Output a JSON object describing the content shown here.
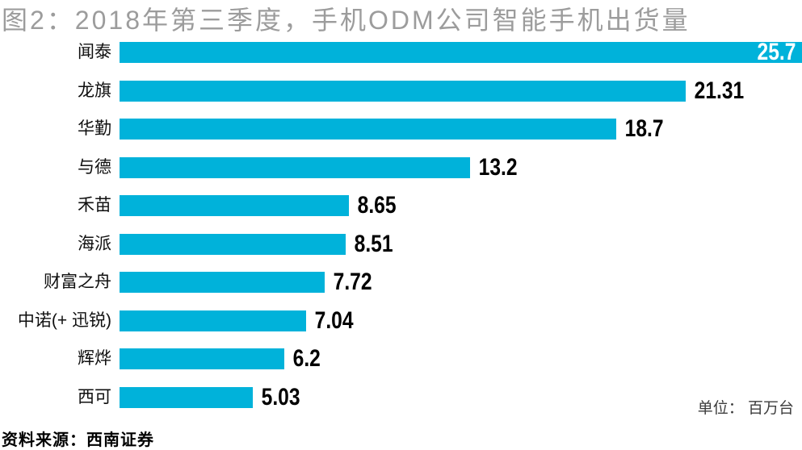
{
  "title": "图2：2018年第三季度，手机ODM公司智能手机出货量",
  "source_note": "资料来源：西南证券",
  "unit_note": "单位： 百万台",
  "colors": {
    "bar": "#00B2DA",
    "title_text": "#9C9C9C",
    "value_outside": "#000000",
    "value_inside": "#FFFFFF",
    "unit_text": "#3D3D3D",
    "source_text": "#000000"
  },
  "chart_data": {
    "type": "bar",
    "orientation": "horizontal",
    "title": "图2：2018年第三季度，手机ODM公司智能手机出货量",
    "xlabel": "",
    "ylabel": "",
    "unit": "百万台",
    "grid": false,
    "legend": null,
    "xlim": [
      0,
      25.7
    ],
    "categories": [
      "闻泰",
      "龙旗",
      "华勤",
      "与德",
      "禾苗",
      "海派",
      "财富之舟",
      "中诺(+ 迅锐)",
      "辉烨",
      "西可"
    ],
    "values": [
      25.7,
      21.31,
      18.7,
      13.2,
      8.65,
      8.51,
      7.72,
      7.04,
      6.2,
      5.03
    ],
    "value_labels": [
      "25.7",
      "21.31",
      "18.7",
      "13.2",
      "8.65",
      "8.51",
      "7.72",
      "7.04",
      "6.2",
      "5.03"
    ],
    "value_label_placement": [
      "inside-end",
      "outside-end",
      "outside-end",
      "outside-end",
      "outside-end",
      "outside-end",
      "outside-end",
      "outside-end",
      "outside-end",
      "outside-end"
    ]
  }
}
